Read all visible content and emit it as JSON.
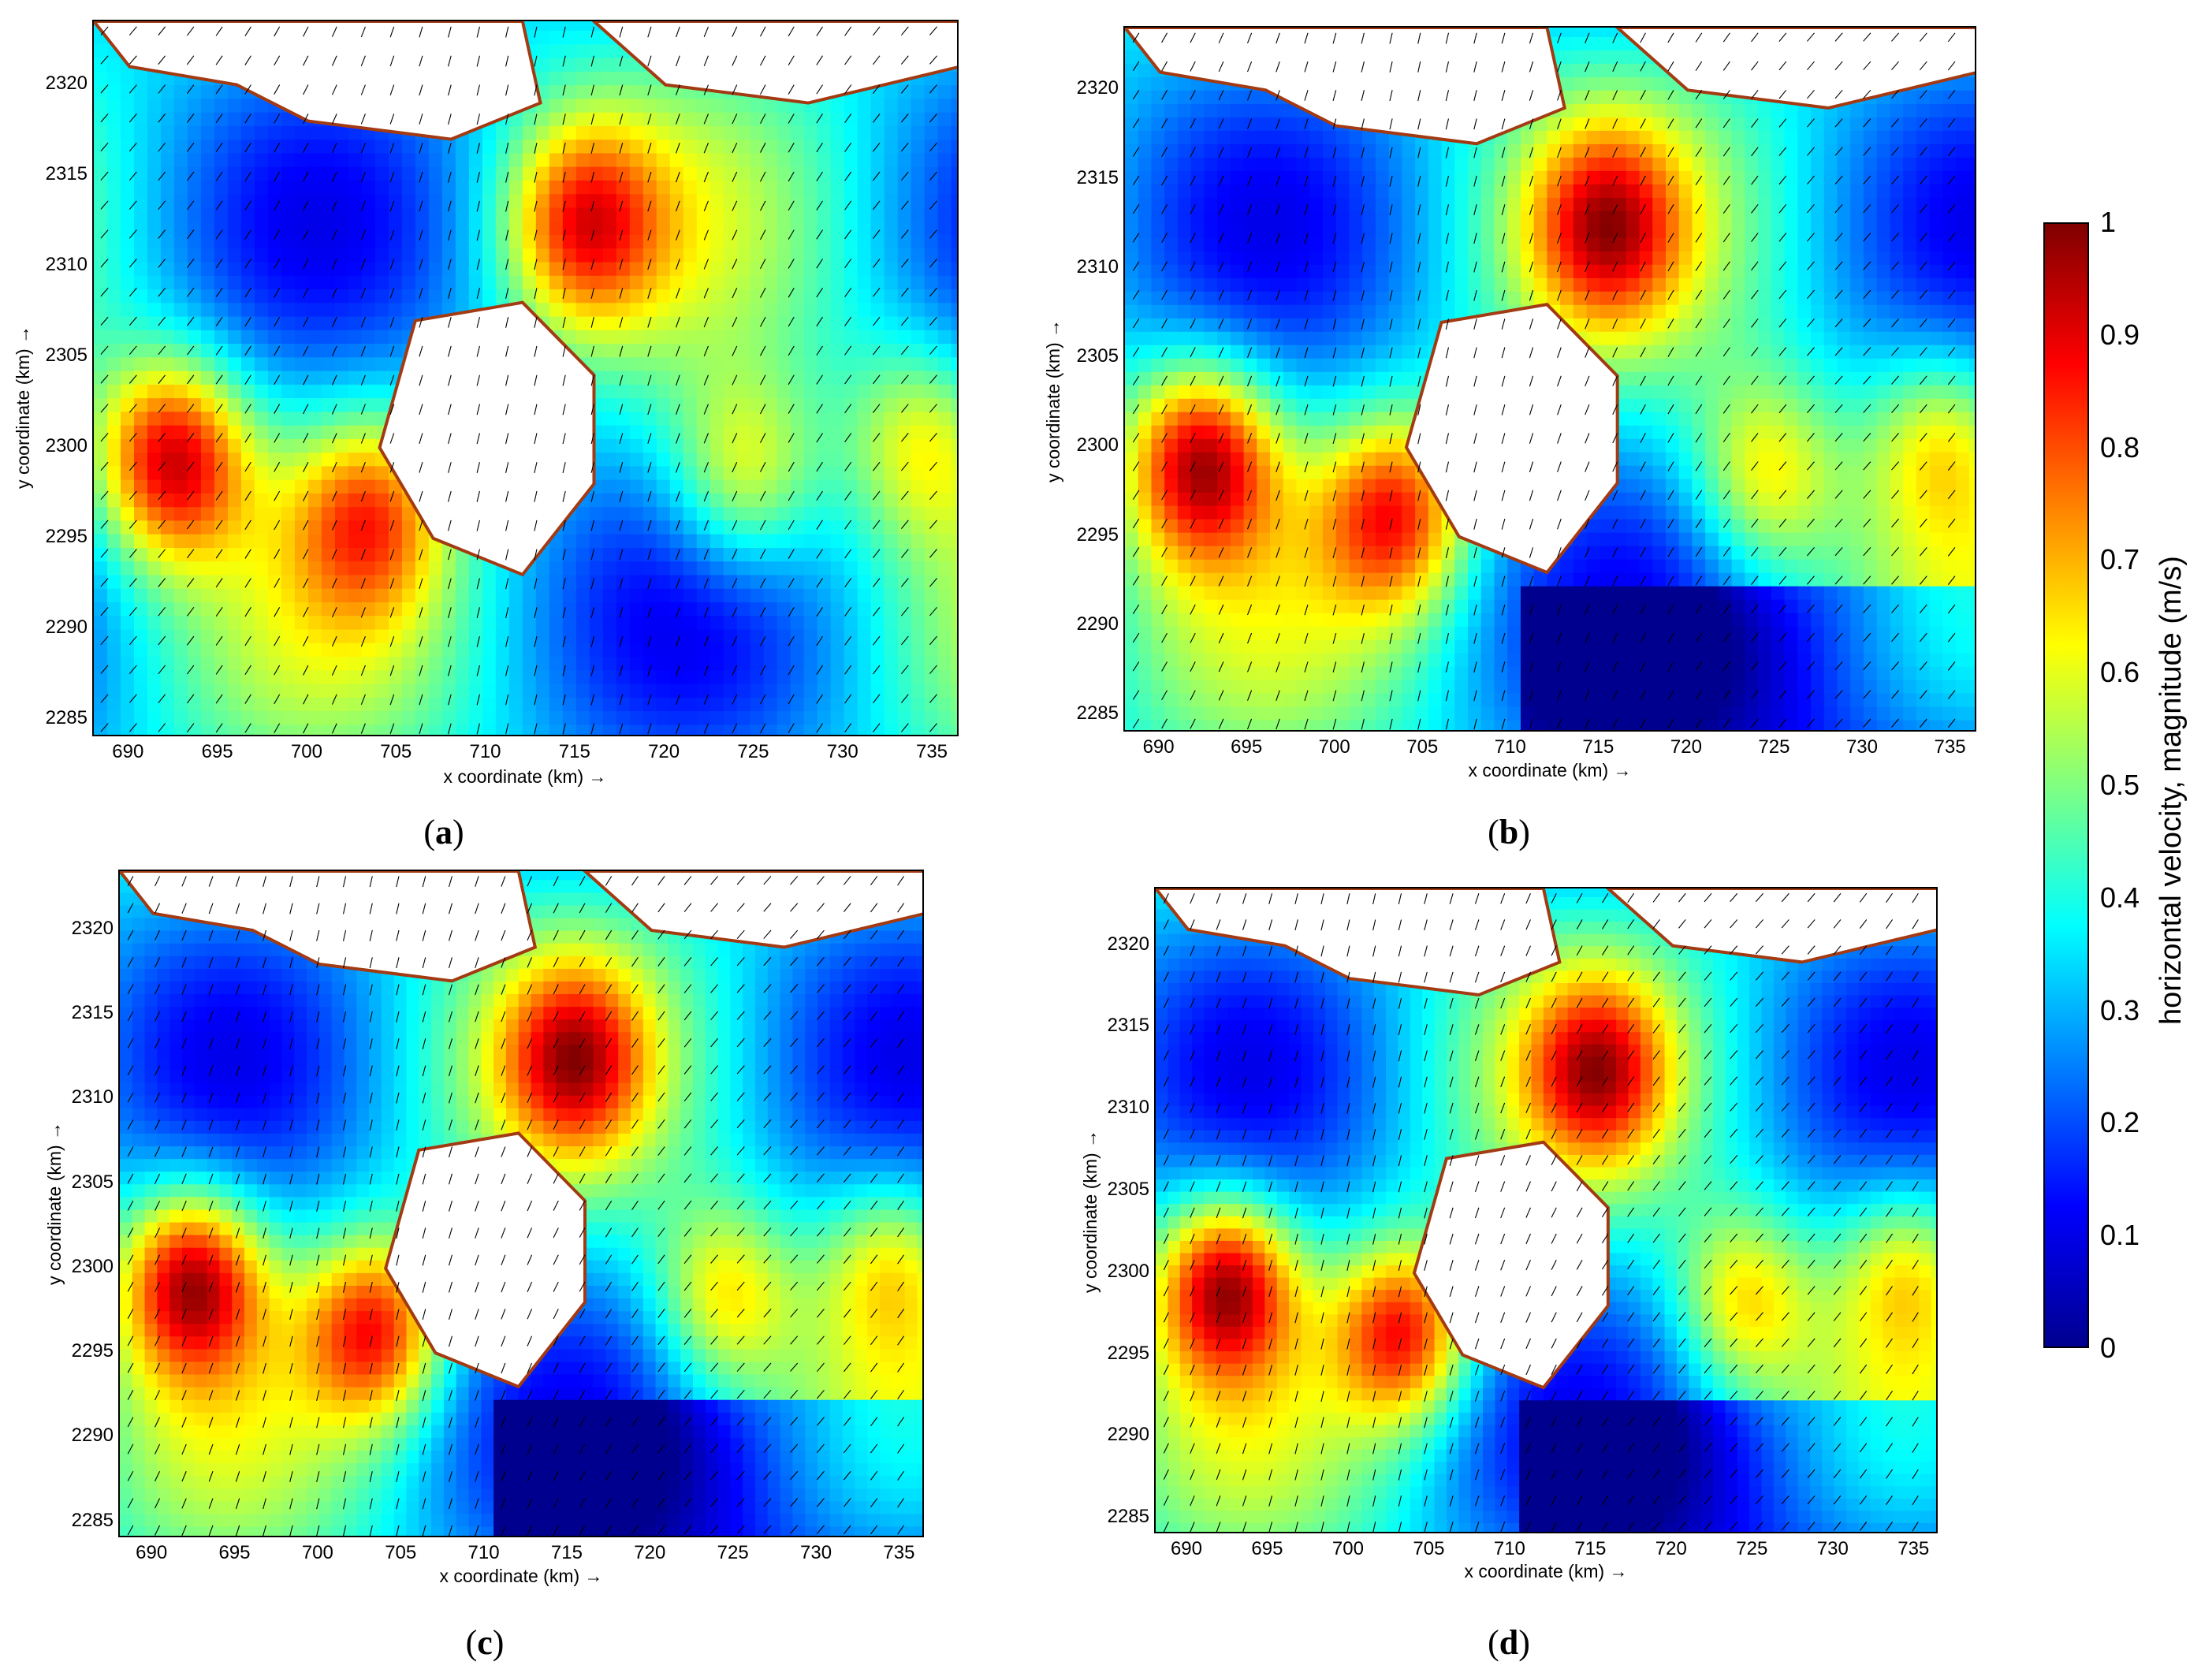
{
  "panels": [
    {
      "id": "a",
      "caption": "a",
      "xlabel": "x coordinate (km) →",
      "ylabel": "y coordinate (km) →"
    },
    {
      "id": "b",
      "caption": "b",
      "xlabel": "x coordinate (km) →",
      "ylabel": "y coordinate (km) →"
    },
    {
      "id": "c",
      "caption": "c",
      "xlabel": "x coordinate (km) →",
      "ylabel": "y coordinate (km) →"
    },
    {
      "id": "d",
      "caption": "d",
      "xlabel": "x coordinate (km) →",
      "ylabel": "y coordinate (km) →"
    }
  ],
  "colorbar": {
    "label": "horizontal velocity, magnitude (m/s)",
    "ticks": [
      "0",
      "0.1",
      "0.2",
      "0.3",
      "0.4",
      "0.5",
      "0.6",
      "0.7",
      "0.8",
      "0.9",
      "1"
    ],
    "range": [
      0,
      1
    ],
    "colormap": [
      "#00008f",
      "#0000ff",
      "#0080ff",
      "#00ffff",
      "#80ff80",
      "#ffff00",
      "#ff8000",
      "#ff0000",
      "#800000"
    ]
  },
  "chart_data": [
    {
      "type": "heatmap",
      "panel": "a",
      "xlabel": "x coordinate (km) →",
      "ylabel": "y coordinate (km) →",
      "xticks": [
        690,
        695,
        700,
        705,
        710,
        715,
        720,
        725,
        730,
        735
      ],
      "yticks": [
        2285,
        2290,
        2295,
        2300,
        2305,
        2310,
        2315,
        2320
      ],
      "xlim": [
        688,
        736.5
      ],
      "ylim": [
        2284,
        2323.5
      ],
      "colorbar_range": [
        0,
        1
      ]
    },
    {
      "type": "heatmap",
      "panel": "b",
      "xlabel": "x coordinate (km) →",
      "ylabel": "y coordinate (km) →",
      "xticks": [
        690,
        695,
        700,
        705,
        710,
        715,
        720,
        725,
        730,
        735
      ],
      "yticks": [
        2285,
        2290,
        2295,
        2300,
        2305,
        2310,
        2315,
        2320
      ],
      "xlim": [
        688,
        736.5
      ],
      "ylim": [
        2284,
        2323.5
      ],
      "colorbar_range": [
        0,
        1
      ]
    },
    {
      "type": "heatmap",
      "panel": "c",
      "xlabel": "x coordinate (km) →",
      "ylabel": "y coordinate (km) →",
      "xticks": [
        690,
        695,
        700,
        705,
        710,
        715,
        720,
        725,
        730,
        735
      ],
      "yticks": [
        2285,
        2290,
        2295,
        2300,
        2305,
        2310,
        2315,
        2320
      ],
      "xlim": [
        688,
        736.5
      ],
      "ylim": [
        2284,
        2323.5
      ],
      "colorbar_range": [
        0,
        1
      ]
    },
    {
      "type": "heatmap",
      "panel": "d",
      "xlabel": "x coordinate (km) →",
      "ylabel": "y coordinate (km) →",
      "xticks": [
        690,
        695,
        700,
        705,
        710,
        715,
        720,
        725,
        730,
        735
      ],
      "yticks": [
        2285,
        2290,
        2295,
        2300,
        2305,
        2310,
        2315,
        2320
      ],
      "xlim": [
        688,
        736.5
      ],
      "ylim": [
        2284,
        2323.5
      ],
      "colorbar_range": [
        0,
        1
      ]
    }
  ]
}
